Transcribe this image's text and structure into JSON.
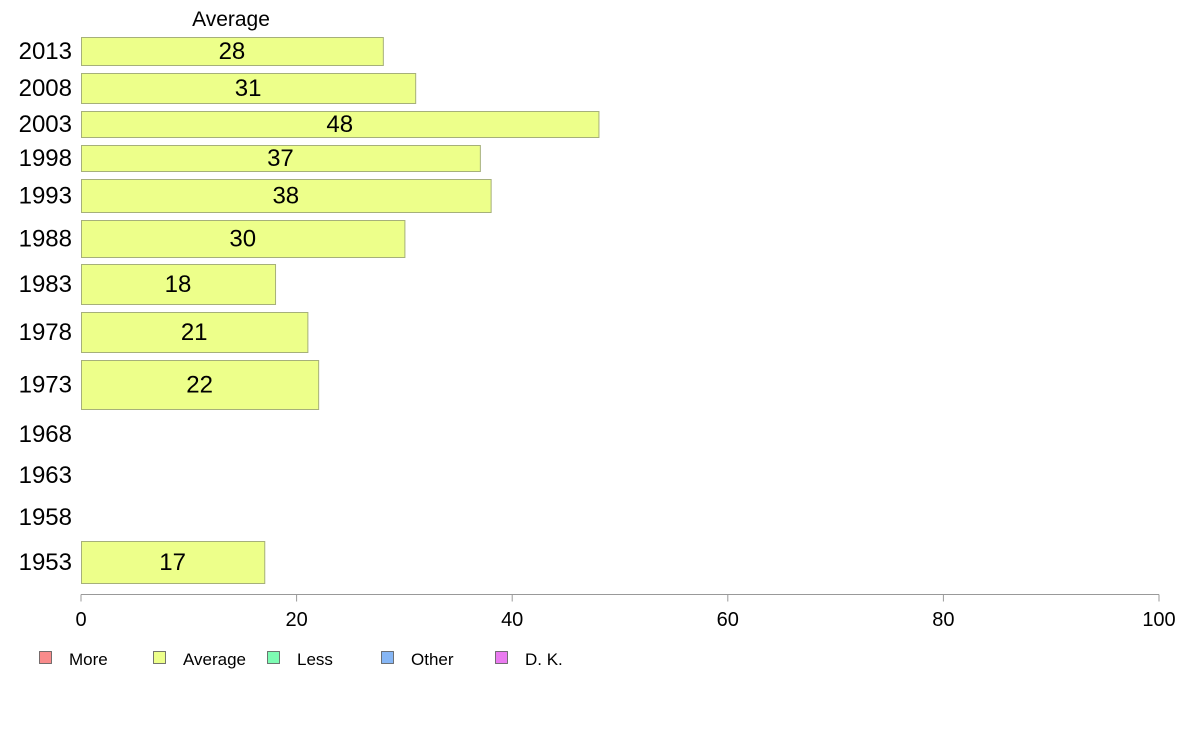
{
  "chart_data": {
    "type": "bar",
    "orientation": "horizontal",
    "title": "Average",
    "categories": [
      "2013",
      "2008",
      "2003",
      "1998",
      "1993",
      "1988",
      "1983",
      "1978",
      "1973",
      "1968",
      "1963",
      "1958",
      "1953"
    ],
    "series": [
      {
        "name": "Average",
        "color": "#edff8a",
        "values": [
          28,
          31,
          48,
          37,
          38,
          30,
          18,
          21,
          22,
          null,
          null,
          null,
          17
        ],
        "labels": [
          "28",
          "31",
          "48",
          "37",
          "38",
          "30",
          "18",
          "21",
          "22",
          "",
          "",
          "",
          "17"
        ]
      }
    ],
    "xlim": [
      0,
      100
    ],
    "xticks": [
      "0",
      "20",
      "40",
      "60",
      "80",
      "100"
    ],
    "grid": false,
    "legend": {
      "placement": "bottom-left",
      "items": [
        {
          "label": "More",
          "color": "#f98b8b"
        },
        {
          "label": "Average",
          "color": "#edff8a"
        },
        {
          "label": "Less",
          "color": "#7dfcb3"
        },
        {
          "label": "Other",
          "color": "#86b6f5"
        },
        {
          "label": "D. K.",
          "color": "#ea7af0"
        }
      ]
    }
  }
}
